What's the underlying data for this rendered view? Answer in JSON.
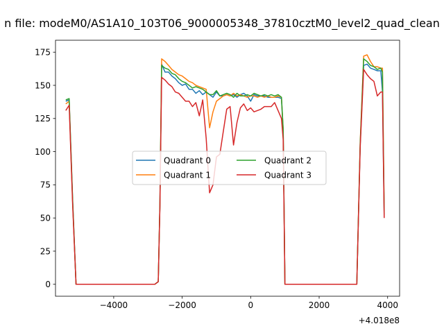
{
  "chart_data": {
    "type": "line",
    "title": "n file: modeM0/AS1A10_103T06_9000005348_37810cztM0_level2_quad_clean",
    "xlabel": "",
    "ylabel": "",
    "x_offset_label": "+4.018e8",
    "xlim": [
      -5700,
      4350
    ],
    "ylim": [
      -9,
      184
    ],
    "xticks": [
      -4000,
      -2000,
      0,
      2000,
      4000
    ],
    "xtick_labels": [
      "−4000",
      "−2000",
      "0",
      "2000",
      "4000"
    ],
    "yticks": [
      0,
      25,
      50,
      75,
      100,
      125,
      150,
      175
    ],
    "ytick_labels": [
      "0",
      "25",
      "50",
      "75",
      "100",
      "125",
      "150",
      "175"
    ],
    "grid": false,
    "legend_position": "center",
    "legend_columns": 2,
    "series": [
      {
        "name": "Quadrant 0",
        "color": "#1f77b4",
        "x": [
          -5400,
          -5300,
          -5200,
          -5100,
          -3000,
          -2800,
          -2700,
          -2650,
          -2600,
          -2500,
          -2400,
          -2300,
          -2200,
          -2100,
          -2000,
          -1900,
          -1800,
          -1700,
          -1600,
          -1500,
          -1400,
          -1300,
          -1200,
          -1100,
          -1000,
          -900,
          -800,
          -700,
          -600,
          -500,
          -400,
          -300,
          -200,
          -100,
          0,
          100,
          200,
          300,
          400,
          500,
          600,
          700,
          800,
          900,
          950,
          1000,
          1100,
          3100,
          3200,
          3300,
          3400,
          3500,
          3600,
          3700,
          3800,
          3850,
          3900
        ],
        "y": [
          138,
          139,
          63,
          0,
          0,
          0,
          2,
          60,
          166,
          160,
          160,
          157,
          155,
          152,
          150,
          151,
          147,
          147,
          144,
          146,
          143,
          145,
          143,
          141,
          145,
          142,
          142,
          143,
          142,
          143,
          141,
          143,
          144,
          142,
          138,
          143,
          142,
          142,
          142,
          141,
          141,
          141,
          141,
          140,
          115,
          0,
          0,
          0,
          105,
          165,
          166,
          163,
          162,
          161,
          161,
          145,
          52
        ]
      },
      {
        "name": "Quadrant 1",
        "color": "#ff7f0e",
        "x": [
          -5400,
          -5300,
          -5200,
          -5100,
          -3000,
          -2800,
          -2700,
          -2650,
          -2600,
          -2500,
          -2400,
          -2300,
          -2200,
          -2100,
          -2000,
          -1900,
          -1800,
          -1700,
          -1600,
          -1500,
          -1400,
          -1300,
          -1200,
          -1100,
          -1000,
          -900,
          -800,
          -700,
          -600,
          -500,
          -400,
          -300,
          -200,
          -100,
          0,
          100,
          200,
          300,
          400,
          500,
          600,
          700,
          800,
          900,
          950,
          1000,
          1100,
          3100,
          3200,
          3300,
          3400,
          3500,
          3600,
          3700,
          3800,
          3850,
          3900
        ],
        "y": [
          136,
          138,
          62,
          0,
          0,
          0,
          2,
          60,
          170,
          168,
          165,
          162,
          160,
          158,
          157,
          155,
          153,
          152,
          150,
          149,
          148,
          147,
          118,
          130,
          138,
          140,
          142,
          143,
          142,
          144,
          142,
          143,
          142,
          141,
          142,
          142,
          141,
          142,
          141,
          142,
          141,
          141,
          142,
          141,
          116,
          0,
          0,
          0,
          107,
          172,
          173,
          168,
          164,
          164,
          163,
          163,
          55
        ]
      },
      {
        "name": "Quadrant 2",
        "color": "#2ca02c",
        "x": [
          -5400,
          -5300,
          -5200,
          -5100,
          -3000,
          -2800,
          -2700,
          -2650,
          -2600,
          -2500,
          -2400,
          -2300,
          -2200,
          -2100,
          -2000,
          -1900,
          -1800,
          -1700,
          -1600,
          -1500,
          -1400,
          -1300,
          -1200,
          -1100,
          -1000,
          -900,
          -800,
          -700,
          -600,
          -500,
          -400,
          -300,
          -200,
          -100,
          0,
          100,
          200,
          300,
          400,
          500,
          600,
          700,
          800,
          900,
          950,
          1000,
          1100,
          3100,
          3200,
          3300,
          3400,
          3500,
          3600,
          3700,
          3800,
          3850,
          3900
        ],
        "y": [
          139,
          140,
          64,
          0,
          0,
          0,
          2,
          60,
          165,
          163,
          162,
          159,
          158,
          155,
          153,
          152,
          150,
          148,
          149,
          148,
          147,
          145,
          143,
          143,
          146,
          142,
          143,
          144,
          143,
          141,
          144,
          142,
          142,
          143,
          142,
          144,
          143,
          142,
          143,
          142,
          143,
          142,
          143,
          141,
          117,
          0,
          0,
          0,
          106,
          170,
          168,
          165,
          164,
          162,
          163,
          160,
          53
        ]
      },
      {
        "name": "Quadrant 3",
        "color": "#d62728",
        "x": [
          -5400,
          -5300,
          -5200,
          -5100,
          -3000,
          -2800,
          -2700,
          -2650,
          -2600,
          -2500,
          -2400,
          -2300,
          -2200,
          -2100,
          -2000,
          -1900,
          -1800,
          -1700,
          -1600,
          -1500,
          -1400,
          -1300,
          -1200,
          -1100,
          -1000,
          -900,
          -800,
          -700,
          -600,
          -500,
          -400,
          -300,
          -200,
          -100,
          0,
          100,
          200,
          300,
          400,
          500,
          600,
          700,
          800,
          900,
          950,
          1000,
          1100,
          3100,
          3200,
          3300,
          3400,
          3500,
          3600,
          3700,
          3800,
          3850,
          3900
        ],
        "y": [
          131,
          135,
          60,
          0,
          0,
          0,
          2,
          58,
          156,
          154,
          151,
          149,
          145,
          144,
          141,
          138,
          138,
          134,
          137,
          127,
          139,
          110,
          69,
          75,
          96,
          98,
          115,
          132,
          134,
          105,
          122,
          133,
          136,
          131,
          133,
          130,
          131,
          132,
          134,
          134,
          134,
          137,
          131,
          125,
          109,
          0,
          0,
          0,
          103,
          162,
          158,
          155,
          153,
          142,
          145,
          145,
          50
        ]
      }
    ]
  }
}
